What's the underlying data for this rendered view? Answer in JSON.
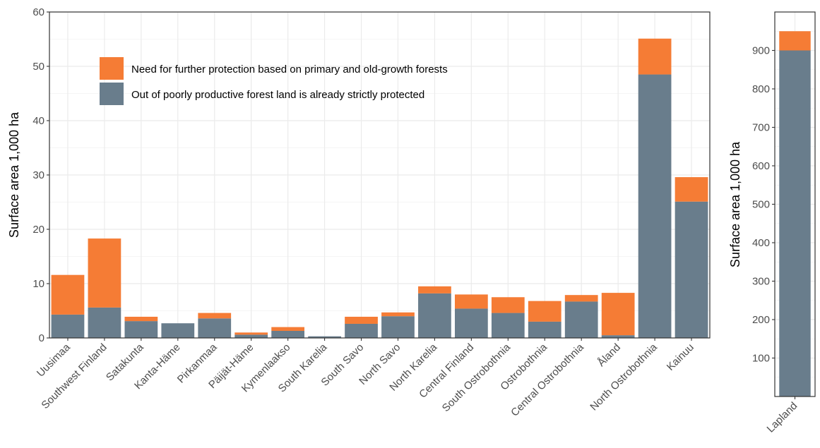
{
  "chart_data": [
    {
      "type": "bar",
      "stacked": true,
      "ylabel": "Surface area 1,000 ha",
      "ylim": [
        0,
        60
      ],
      "yticks": [
        0,
        10,
        20,
        30,
        40,
        50,
        60
      ],
      "grid": true,
      "legend_position": "top-left",
      "categories": [
        "Uusimaa",
        "Southwest Finland",
        "Satakunta",
        "Kanta-Häme",
        "Pirkanmaa",
        "Päijät-Häme",
        "Kymenlaakso",
        "South Karelia",
        "South Savo",
        "North Savo",
        "North Karelia",
        "Central Finland",
        "South Ostrobothnia",
        "Ostrobothnia",
        "Central Ostrobothnia",
        "Åland",
        "North Ostrobothnia",
        "Kainuu"
      ],
      "series": [
        {
          "name": "Out of poorly productive forest land is already strictly protected",
          "color": "#697d8c",
          "values": [
            4.3,
            5.6,
            3.1,
            2.7,
            3.6,
            0.6,
            1.3,
            0.3,
            2.6,
            4.0,
            8.2,
            5.4,
            4.6,
            3.0,
            6.7,
            0.5,
            48.5,
            25.1
          ]
        },
        {
          "name": "Need for further protection based on primary and old-growth forests",
          "color": "#f57c35",
          "values": [
            7.3,
            12.7,
            0.8,
            0.0,
            1.0,
            0.4,
            0.7,
            0.0,
            1.3,
            0.7,
            1.3,
            2.6,
            2.9,
            3.8,
            1.2,
            7.8,
            6.6,
            4.5
          ]
        }
      ]
    },
    {
      "type": "bar",
      "stacked": true,
      "ylabel": "Surface area 1,000 ha",
      "ylim": [
        0,
        1000
      ],
      "yticks": [
        100,
        200,
        300,
        400,
        500,
        600,
        700,
        800,
        900
      ],
      "grid": true,
      "categories": [
        "Lapland"
      ],
      "series": [
        {
          "name": "Out of poorly productive forest land is already strictly protected",
          "color": "#697d8c",
          "values": [
            900
          ]
        },
        {
          "name": "Need for further protection based on primary and old-growth forests",
          "color": "#f57c35",
          "values": [
            50
          ]
        }
      ]
    }
  ]
}
